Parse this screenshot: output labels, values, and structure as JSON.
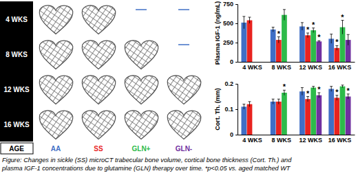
{
  "chart_data": [
    {
      "type": "bar",
      "categories": [
        "4 WKS",
        "8 WKS",
        "12 WKS",
        "16 WKS"
      ],
      "y_label": "Plasma IGF-1 (ng/mL)",
      "ylim": [
        0,
        750
      ],
      "yticks": [
        0,
        250,
        500,
        750
      ],
      "series": [
        {
          "name": "AA",
          "color": "#3f6fc6",
          "values": [
            510,
            420,
            460,
            300
          ],
          "errors": [
            80,
            30,
            50,
            60
          ],
          "annotations": [
            null,
            null,
            null,
            null
          ]
        },
        {
          "name": "SS",
          "color": "#e8231f",
          "values": [
            540,
            285,
            345,
            180
          ],
          "errors": [
            40,
            40,
            30,
            30
          ],
          "annotations": [
            null,
            "*",
            "*",
            "*"
          ]
        },
        {
          "name": "GLN+",
          "color": "#2dbb4a",
          "values": [
            null,
            610,
            410,
            450
          ],
          "errors": [
            null,
            70,
            30,
            90
          ],
          "annotations": [
            null,
            null,
            "*",
            "*"
          ]
        },
        {
          "name": "GLN-",
          "color": "#7030a0",
          "values": [
            null,
            null,
            265,
            285
          ],
          "errors": [
            null,
            null,
            10,
            70
          ],
          "annotations": [
            null,
            null,
            "*",
            null
          ]
        }
      ]
    },
    {
      "type": "bar",
      "categories": [
        "4 WKS",
        "8 WKS",
        "12 WKS",
        "16 WKS"
      ],
      "y_label": "Cort. Th. (mm)",
      "ylim": [
        0,
        0.2
      ],
      "yticks": [
        0,
        0.1,
        0.2
      ],
      "series": [
        {
          "name": "AA",
          "color": "#3f6fc6",
          "values": [
            0.11,
            0.13,
            0.17,
            0.18
          ],
          "errors": [
            0.01,
            0.01,
            0.015,
            0.01
          ],
          "annotations": [
            null,
            null,
            null,
            null
          ]
        },
        {
          "name": "SS",
          "color": "#e8231f",
          "values": [
            0.12,
            0.13,
            0.14,
            0.145
          ],
          "errors": [
            0.01,
            0.01,
            0.01,
            0.01
          ],
          "annotations": [
            null,
            null,
            "*",
            "*"
          ]
        },
        {
          "name": "GLN+",
          "color": "#2dbb4a",
          "values": [
            null,
            0.165,
            0.185,
            0.19
          ],
          "errors": [
            null,
            0.01,
            0.005,
            0.005
          ],
          "annotations": [
            null,
            "*",
            null,
            null
          ]
        },
        {
          "name": "GLN-",
          "color": "#7030a0",
          "values": [
            null,
            null,
            0.155,
            0.15
          ],
          "errors": [
            null,
            null,
            0.01,
            0.01
          ],
          "annotations": [
            null,
            null,
            "*",
            "*"
          ]
        }
      ]
    }
  ],
  "figure": {
    "age_label": "AGE",
    "caption": [
      "Figure: Changes in sickle (SS) microCT trabecular bone volume, cortical bone thickness (Cort. Th.) and",
      "plasma IGF-1 concentrations due to glutamine (GLN) therapy over time. *p<0.05 vs. aged matched WT"
    ]
  }
}
